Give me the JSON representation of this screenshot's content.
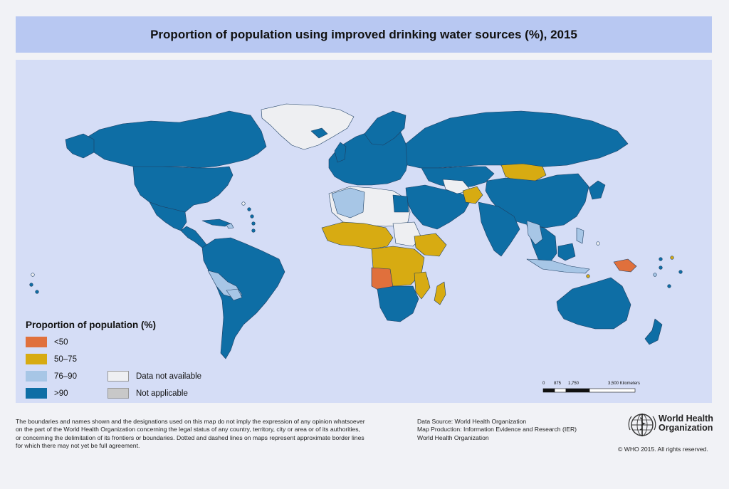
{
  "title": "Proportion of population using improved drinking water sources (%), 2015",
  "colors": {
    "background": "#f1f2f6",
    "title_bar": "#b8c8f2",
    "ocean": "#d5ddf6",
    "lt50": "#e0703c",
    "c50_75": "#d7ab12",
    "c76_90": "#a7c6e6",
    "gt90": "#0e6ea5",
    "no_data": "#eeeff2",
    "not_applicable": "#c8c8c8",
    "border": "#1d3f63"
  },
  "legend": {
    "title": "Proportion of population (%)",
    "items": [
      {
        "label": "<50",
        "color": "#e0703c"
      },
      {
        "label": "50–75",
        "color": "#d7ab12"
      },
      {
        "label": "76–90",
        "color": "#a7c6e6"
      },
      {
        "label": ">90",
        "color": "#0e6ea5"
      },
      {
        "label": "Data not available",
        "color": "#eeeff2"
      },
      {
        "label": "Not applicable",
        "color": "#c8c8c8"
      }
    ]
  },
  "scale_bar": {
    "labels": [
      "0",
      "875",
      "1,750",
      "3,500 Kilometers"
    ]
  },
  "disclaimer": [
    "The boundaries and names shown and the designations used on this map do not imply the expression of any opinion whatsoever",
    "on the part of the World Health Organization concerning the legal status of any country, territory, city or area or of its authorities,",
    "or concerning the delimitation of its frontiers or boundaries. Dotted and dashed lines on maps represent approximate border lines",
    "for which there may not yet be full agreement."
  ],
  "source": [
    "Data Source: World Health Organization",
    "Map Production: Information Evidence and Research (IER)",
    "World Health Organization"
  ],
  "organization": {
    "name_line1": "World Health",
    "name_line2": "Organization"
  },
  "copyright": "© WHO 2015. All rights reserved."
}
